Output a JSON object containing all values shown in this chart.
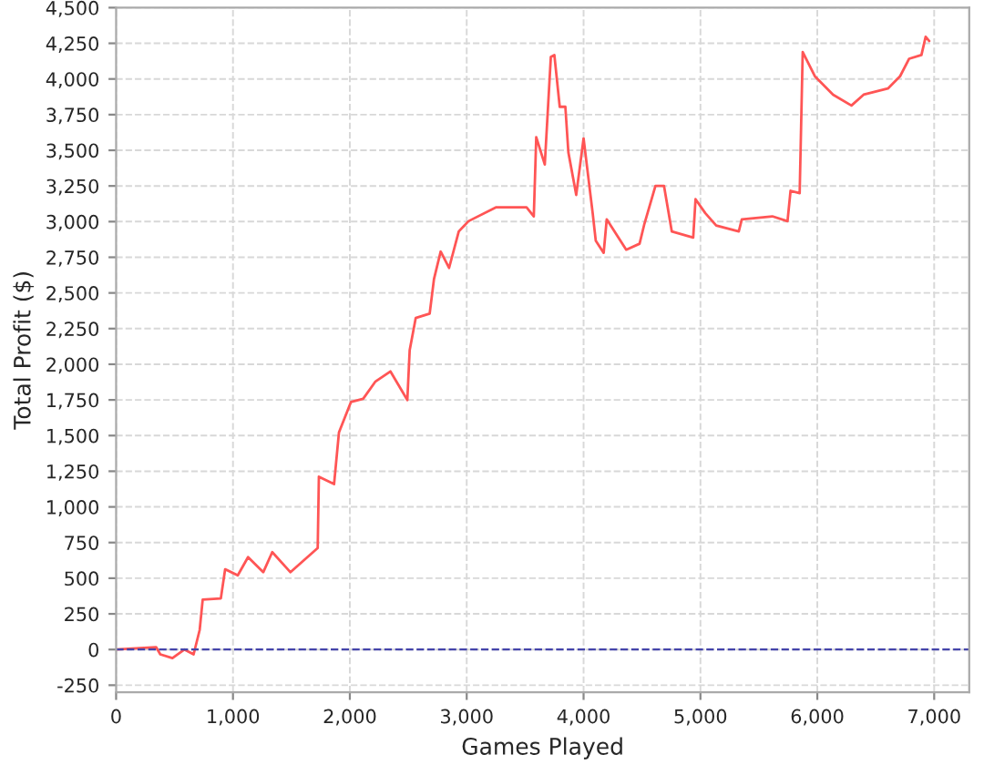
{
  "chart_data": {
    "type": "line",
    "xlabel": "Games Played",
    "ylabel": "Total Profit ($)",
    "x": [
      0,
      342,
      378,
      482,
      585,
      663,
      715,
      741,
      896,
      933,
      1041,
      1129,
      1259,
      1336,
      1492,
      1725,
      1735,
      1865,
      1907,
      2010,
      2114,
      2217,
      2347,
      2492,
      2512,
      2564,
      2683,
      2720,
      2777,
      2849,
      2932,
      3015,
      3253,
      3512,
      3574,
      3595,
      3668,
      3720,
      3750,
      3796,
      3844,
      3870,
      3937,
      4000,
      4078,
      4104,
      4172,
      4198,
      4365,
      4479,
      4521,
      4615,
      4688,
      4755,
      4938,
      4958,
      5042,
      5135,
      5328,
      5354,
      5615,
      5745,
      5771,
      5849,
      5875,
      5979,
      6135,
      6292,
      6396,
      6604,
      6708,
      6786,
      6891,
      6927,
      6958
    ],
    "series": [
      {
        "color": "#ff5555",
        "values": [
          0,
          17,
          -34,
          -60,
          0,
          -34,
          137,
          350,
          358,
          563,
          520,
          648,
          542,
          683,
          542,
          712,
          1212,
          1160,
          1523,
          1736,
          1758,
          1877,
          1950,
          1749,
          2099,
          2325,
          2355,
          2598,
          2790,
          2675,
          2931,
          3003,
          3101,
          3101,
          3037,
          3592,
          3400,
          4155,
          4168,
          3805,
          3805,
          3485,
          3187,
          3583,
          3059,
          2867,
          2781,
          3016,
          2803,
          2845,
          2986,
          3251,
          3251,
          2931,
          2888,
          3157,
          3059,
          2973,
          2931,
          3016,
          3037,
          3003,
          3216,
          3199,
          4189,
          4019,
          3890,
          3814,
          3890,
          3933,
          4019,
          4142,
          4168,
          4296,
          4266
        ]
      }
    ],
    "xlim": [
      0,
      7300
    ],
    "xticks": [
      0,
      {
        "value": 1000,
        "label": "1,000"
      },
      {
        "value": 2000,
        "label": "2,000"
      },
      {
        "value": 3000,
        "label": "3,000"
      },
      {
        "value": 4000,
        "label": "4,000"
      },
      {
        "value": 5000,
        "label": "5,000"
      },
      {
        "value": 6000,
        "label": "6,000"
      },
      {
        "value": 7000,
        "label": "7,000"
      }
    ],
    "ylim": [
      -300,
      4500
    ],
    "yticks": [
      {
        "value": -250,
        "label": "-250"
      },
      0,
      250,
      500,
      750,
      {
        "value": 1000,
        "label": "1,000"
      },
      {
        "value": 1250,
        "label": "1,250"
      },
      {
        "value": 1500,
        "label": "1,500"
      },
      {
        "value": 1750,
        "label": "1,750"
      },
      {
        "value": 2000,
        "label": "2,000"
      },
      {
        "value": 2250,
        "label": "2,250"
      },
      {
        "value": 2500,
        "label": "2,500"
      },
      {
        "value": 2750,
        "label": "2,750"
      },
      {
        "value": 3000,
        "label": "3,000"
      },
      {
        "value": 3250,
        "label": "3,250"
      },
      {
        "value": 3500,
        "label": "3,500"
      },
      {
        "value": 3750,
        "label": "3,750"
      },
      {
        "value": 4000,
        "label": "4,000"
      },
      {
        "value": 4250,
        "label": "4,250"
      },
      {
        "value": 4500,
        "label": "4,500"
      }
    ],
    "grid": true,
    "legend": false,
    "line_style": "solid",
    "marker": "none",
    "ref_lines": [
      {
        "axis": "y",
        "value": 0,
        "color": "#4444aa",
        "line_style": "dashed"
      }
    ]
  }
}
